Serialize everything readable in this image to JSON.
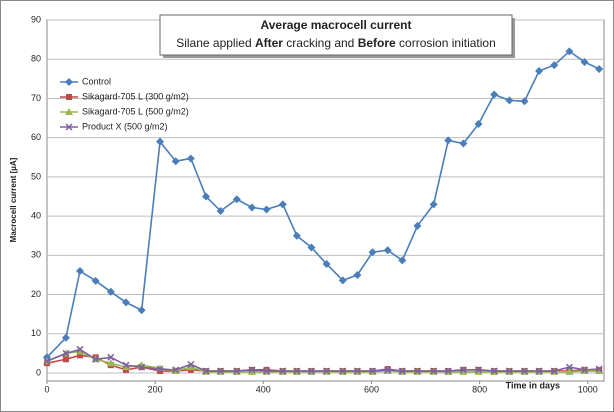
{
  "chart_data": {
    "type": "line",
    "title": "Average macrocell current",
    "subtitle": [
      "Silane applied ",
      "After",
      " cracking and ",
      "Before",
      " corrosion initiation"
    ],
    "xlabel": "Time in days",
    "ylabel": "Macrocell current [µA]",
    "xlim": [
      0,
      1030
    ],
    "xticks": [
      0,
      200,
      400,
      600,
      800,
      1000
    ],
    "ylim": [
      0,
      90
    ],
    "yticks": [
      0,
      10,
      20,
      30,
      40,
      50,
      60,
      70,
      80,
      90
    ],
    "grid": true,
    "legend": "upper left",
    "x": [
      0,
      35,
      61,
      90,
      118,
      146,
      175,
      209,
      238,
      266,
      294,
      321,
      351,
      379,
      406,
      436,
      462,
      489,
      517,
      547,
      574,
      602,
      630,
      657,
      685,
      715,
      742,
      770,
      798,
      827,
      855,
      883,
      910,
      938,
      966,
      994,
      1021
    ],
    "series": [
      {
        "name": "Control",
        "color": "#4a7ebb",
        "marker": "diamond",
        "values": [
          4,
          9,
          26,
          23.5,
          20.7,
          18,
          16,
          59,
          54,
          54.7,
          45,
          41.3,
          44.3,
          42.2,
          41.7,
          43,
          35,
          32,
          27.8,
          23.6,
          25,
          30.8,
          31.3,
          28.7,
          37.5,
          43,
          59.3,
          58.5,
          63.5,
          71,
          69.5,
          69.3,
          77,
          78.5,
          82,
          79.3,
          77.5
        ]
      },
      {
        "name": "Sikagard-705 L (300 g/m2)",
        "color": "#be4b48",
        "marker": "square",
        "values": [
          2.5,
          3.5,
          4.5,
          4,
          2,
          0.8,
          1.5,
          0.5,
          0.5,
          0.8,
          0.5,
          0.5,
          0.5,
          0.8,
          0.8,
          0.5,
          0.5,
          0.5,
          0.5,
          0.5,
          0.5,
          0.5,
          1,
          0.5,
          0.5,
          0.5,
          0.5,
          0.8,
          0.8,
          0.5,
          0.5,
          0.5,
          0.5,
          0.5,
          0.5,
          0.8,
          0.8
        ]
      },
      {
        "name": "Sikagard-705 L (500 g/m2)",
        "color": "#98b954",
        "marker": "triangle",
        "values": [
          3,
          5,
          5.5,
          3.5,
          2.5,
          1.5,
          2,
          1.2,
          0.5,
          1.5,
          0.3,
          0.3,
          0.3,
          0.3,
          0.3,
          0.3,
          0.3,
          0.3,
          0.3,
          0.3,
          0.3,
          0.3,
          0.5,
          0.3,
          0.3,
          0.3,
          0.3,
          0.3,
          0.3,
          0.3,
          0.3,
          0.3,
          0.3,
          0.3,
          0.3,
          0.5,
          0.5
        ]
      },
      {
        "name": "Product X (500 g/m2)",
        "color": "#7d60a0",
        "marker": "x",
        "values": [
          3,
          5,
          6,
          3.5,
          4,
          2,
          1.5,
          1,
          0.8,
          2.2,
          0.5,
          0.5,
          0.5,
          0.8,
          0.5,
          0.5,
          0.5,
          0.5,
          0.5,
          0.5,
          0.5,
          0.5,
          0.8,
          0.5,
          0.5,
          0.5,
          0.5,
          0.8,
          0.8,
          0.5,
          0.5,
          0.5,
          0.5,
          0.5,
          1.5,
          0.8,
          1
        ]
      }
    ]
  }
}
